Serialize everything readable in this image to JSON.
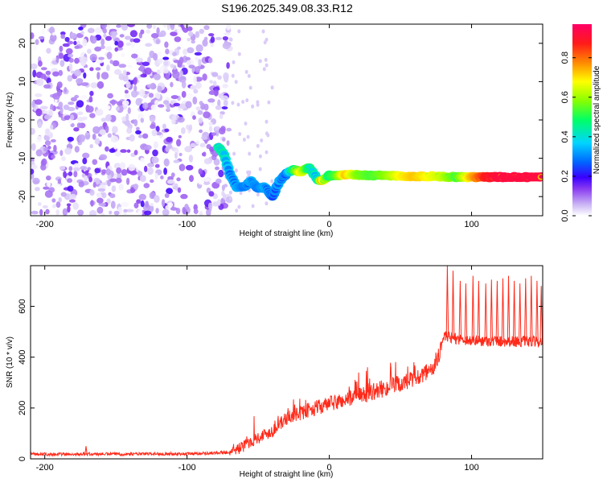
{
  "chart_data": [
    {
      "type": "heatmap",
      "title": "S196.2025.349.08.33.R12",
      "xlabel": "Height of straight line (km)",
      "ylabel": "Frequency (Hz)",
      "xlim": [
        -210,
        150
      ],
      "ylim": [
        -25,
        25
      ],
      "xticks": [
        -200,
        -100,
        0,
        100
      ],
      "yticks": [
        -20,
        -10,
        0,
        10,
        20
      ],
      "colorbar": {
        "label": "Normalized spectral amplitude",
        "range": [
          0,
          0.97
        ],
        "ticks": [
          0.0,
          0.2,
          0.4,
          0.6,
          0.8
        ],
        "colors": [
          "#ffffff",
          "#c9b3f5",
          "#8a3cf0",
          "#3a00ff",
          "#0066ff",
          "#00d5ff",
          "#00ff66",
          "#88ff00",
          "#ffff00",
          "#ff8800",
          "#ff1a1a",
          "#ff0066"
        ]
      },
      "noise_region": {
        "x": [
          -210,
          -70
        ],
        "y": [
          -25,
          25
        ],
        "amplitude": 0.2
      },
      "signal_track": [
        {
          "x": -78,
          "y": -7,
          "a": 0.45
        },
        {
          "x": -74,
          "y": -9,
          "a": 0.45
        },
        {
          "x": -70,
          "y": -14,
          "a": 0.35
        },
        {
          "x": -65,
          "y": -17.5,
          "a": 0.35
        },
        {
          "x": -60,
          "y": -17.5,
          "a": 0.3
        },
        {
          "x": -55,
          "y": -16,
          "a": 0.35
        },
        {
          "x": -50,
          "y": -18,
          "a": 0.3
        },
        {
          "x": -45,
          "y": -17.5,
          "a": 0.35
        },
        {
          "x": -40,
          "y": -20,
          "a": 0.3
        },
        {
          "x": -35,
          "y": -16,
          "a": 0.35
        },
        {
          "x": -30,
          "y": -14,
          "a": 0.3
        },
        {
          "x": -25,
          "y": -13,
          "a": 0.5
        },
        {
          "x": -20,
          "y": -13.5,
          "a": 0.7
        },
        {
          "x": -14,
          "y": -12.5,
          "a": 0.5
        },
        {
          "x": -8,
          "y": -15.5,
          "a": 0.4
        },
        {
          "x": -5,
          "y": -16,
          "a": 0.75
        },
        {
          "x": 0,
          "y": -14.5,
          "a": 0.5
        },
        {
          "x": 5,
          "y": -14.5,
          "a": 0.55
        },
        {
          "x": 12,
          "y": -14.3,
          "a": 0.75
        },
        {
          "x": 20,
          "y": -14.3,
          "a": 0.6
        },
        {
          "x": 30,
          "y": -14.5,
          "a": 0.55
        },
        {
          "x": 40,
          "y": -14.5,
          "a": 0.6
        },
        {
          "x": 50,
          "y": -14.6,
          "a": 0.7
        },
        {
          "x": 60,
          "y": -14.7,
          "a": 0.75
        },
        {
          "x": 70,
          "y": -14.7,
          "a": 0.7
        },
        {
          "x": 80,
          "y": -14.8,
          "a": 0.65
        },
        {
          "x": 90,
          "y": -14.9,
          "a": 0.55
        },
        {
          "x": 100,
          "y": -14.9,
          "a": 0.75
        },
        {
          "x": 110,
          "y": -14.9,
          "a": 0.9
        },
        {
          "x": 120,
          "y": -14.9,
          "a": 0.95
        },
        {
          "x": 130,
          "y": -14.9,
          "a": 0.95
        },
        {
          "x": 140,
          "y": -14.9,
          "a": 0.95
        },
        {
          "x": 150,
          "y": -14.9,
          "a": 0.95
        }
      ]
    },
    {
      "type": "line",
      "xlabel": "Height of straight line (km)",
      "ylabel": "SNR (10 * v/v)",
      "xlim": [
        -210,
        150
      ],
      "ylim": [
        0,
        760
      ],
      "xticks": [
        -200,
        -100,
        0,
        100
      ],
      "yticks": [
        0,
        200,
        400,
        600
      ],
      "color": "#ff2a1a",
      "series": [
        {
          "name": "SNR",
          "trend": {
            "x": [
              -210,
              -100,
              -70,
              -60,
              -55,
              -40,
              -30,
              -20,
              -10,
              0,
              20,
              40,
              60,
              70,
              75,
              78,
              80,
              100,
              150
            ],
            "y": [
              18,
              20,
              25,
              50,
              70,
              110,
              160,
              180,
              200,
              215,
              245,
              280,
              310,
              340,
              380,
              430,
              480,
              465,
              460
            ]
          },
          "spikes_x": [
            -171,
            83,
            87,
            92,
            96,
            101,
            105,
            110,
            114,
            118,
            122,
            126,
            130,
            134,
            138,
            142,
            146,
            149
          ],
          "spike_peaks": [
            50,
            760,
            740,
            700,
            690,
            720,
            700,
            690,
            705,
            700,
            710,
            720,
            700,
            690,
            710,
            720,
            700,
            680
          ]
        }
      ]
    }
  ]
}
